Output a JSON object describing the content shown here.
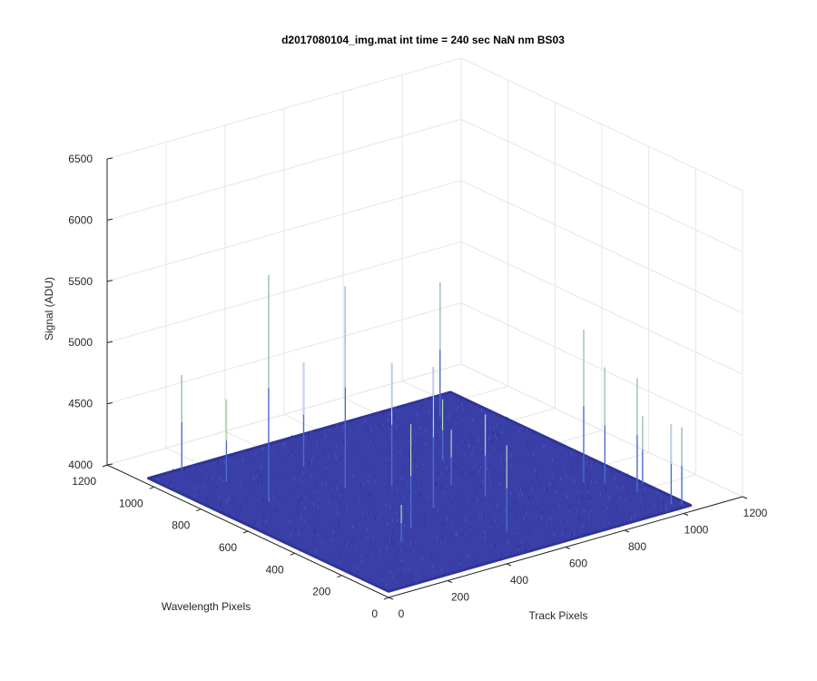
{
  "chart_data": {
    "type": "surface3d",
    "title": "d2017080104_img.mat int time = 240 sec  NaN nm BS03",
    "xlabel": "Track Pixels",
    "ylabel": "Wavelength Pixels",
    "zlabel": "Signal (ADU)",
    "xlim": [
      0,
      1200
    ],
    "ylim": [
      0,
      1200
    ],
    "zlim": [
      4000,
      6500
    ],
    "x_ticks": [
      0,
      200,
      400,
      600,
      800,
      1000,
      1200
    ],
    "y_ticks": [
      0,
      200,
      400,
      600,
      800,
      1000,
      1200
    ],
    "z_ticks": [
      4000,
      4500,
      5000,
      5500,
      6000,
      6500
    ],
    "grid": true,
    "surface_extent": [
      1024,
      1024
    ],
    "baseline_signal": 4050,
    "surface_color": "#3a3fa8",
    "spikes": [
      {
        "x": 110,
        "y": 1020,
        "z": 4820
      },
      {
        "x": 150,
        "y": 880,
        "z": 4720
      },
      {
        "x": 380,
        "y": 840,
        "z": 4900
      },
      {
        "x": 150,
        "y": 700,
        "z": 5900
      },
      {
        "x": 370,
        "y": 650,
        "z": 5700
      },
      {
        "x": 480,
        "y": 590,
        "z": 5050
      },
      {
        "x": 470,
        "y": 400,
        "z": 5200
      },
      {
        "x": 630,
        "y": 380,
        "z": 4720
      },
      {
        "x": 700,
        "y": 650,
        "z": 4550
      },
      {
        "x": 330,
        "y": 320,
        "z": 4900
      },
      {
        "x": 520,
        "y": 150,
        "z": 4750
      },
      {
        "x": 900,
        "y": 300,
        "z": 5300
      },
      {
        "x": 940,
        "y": 260,
        "z": 5000
      },
      {
        "x": 970,
        "y": 160,
        "z": 4980
      },
      {
        "x": 1020,
        "y": 200,
        "z": 4600
      },
      {
        "x": 990,
        "y": 40,
        "z": 4700
      },
      {
        "x": 1010,
        "y": 20,
        "z": 4680
      },
      {
        "x": 890,
        "y": 900,
        "z": 5150
      },
      {
        "x": 610,
        "y": 500,
        "z": 4500
      },
      {
        "x": 250,
        "y": 260,
        "z": 4350
      }
    ]
  }
}
